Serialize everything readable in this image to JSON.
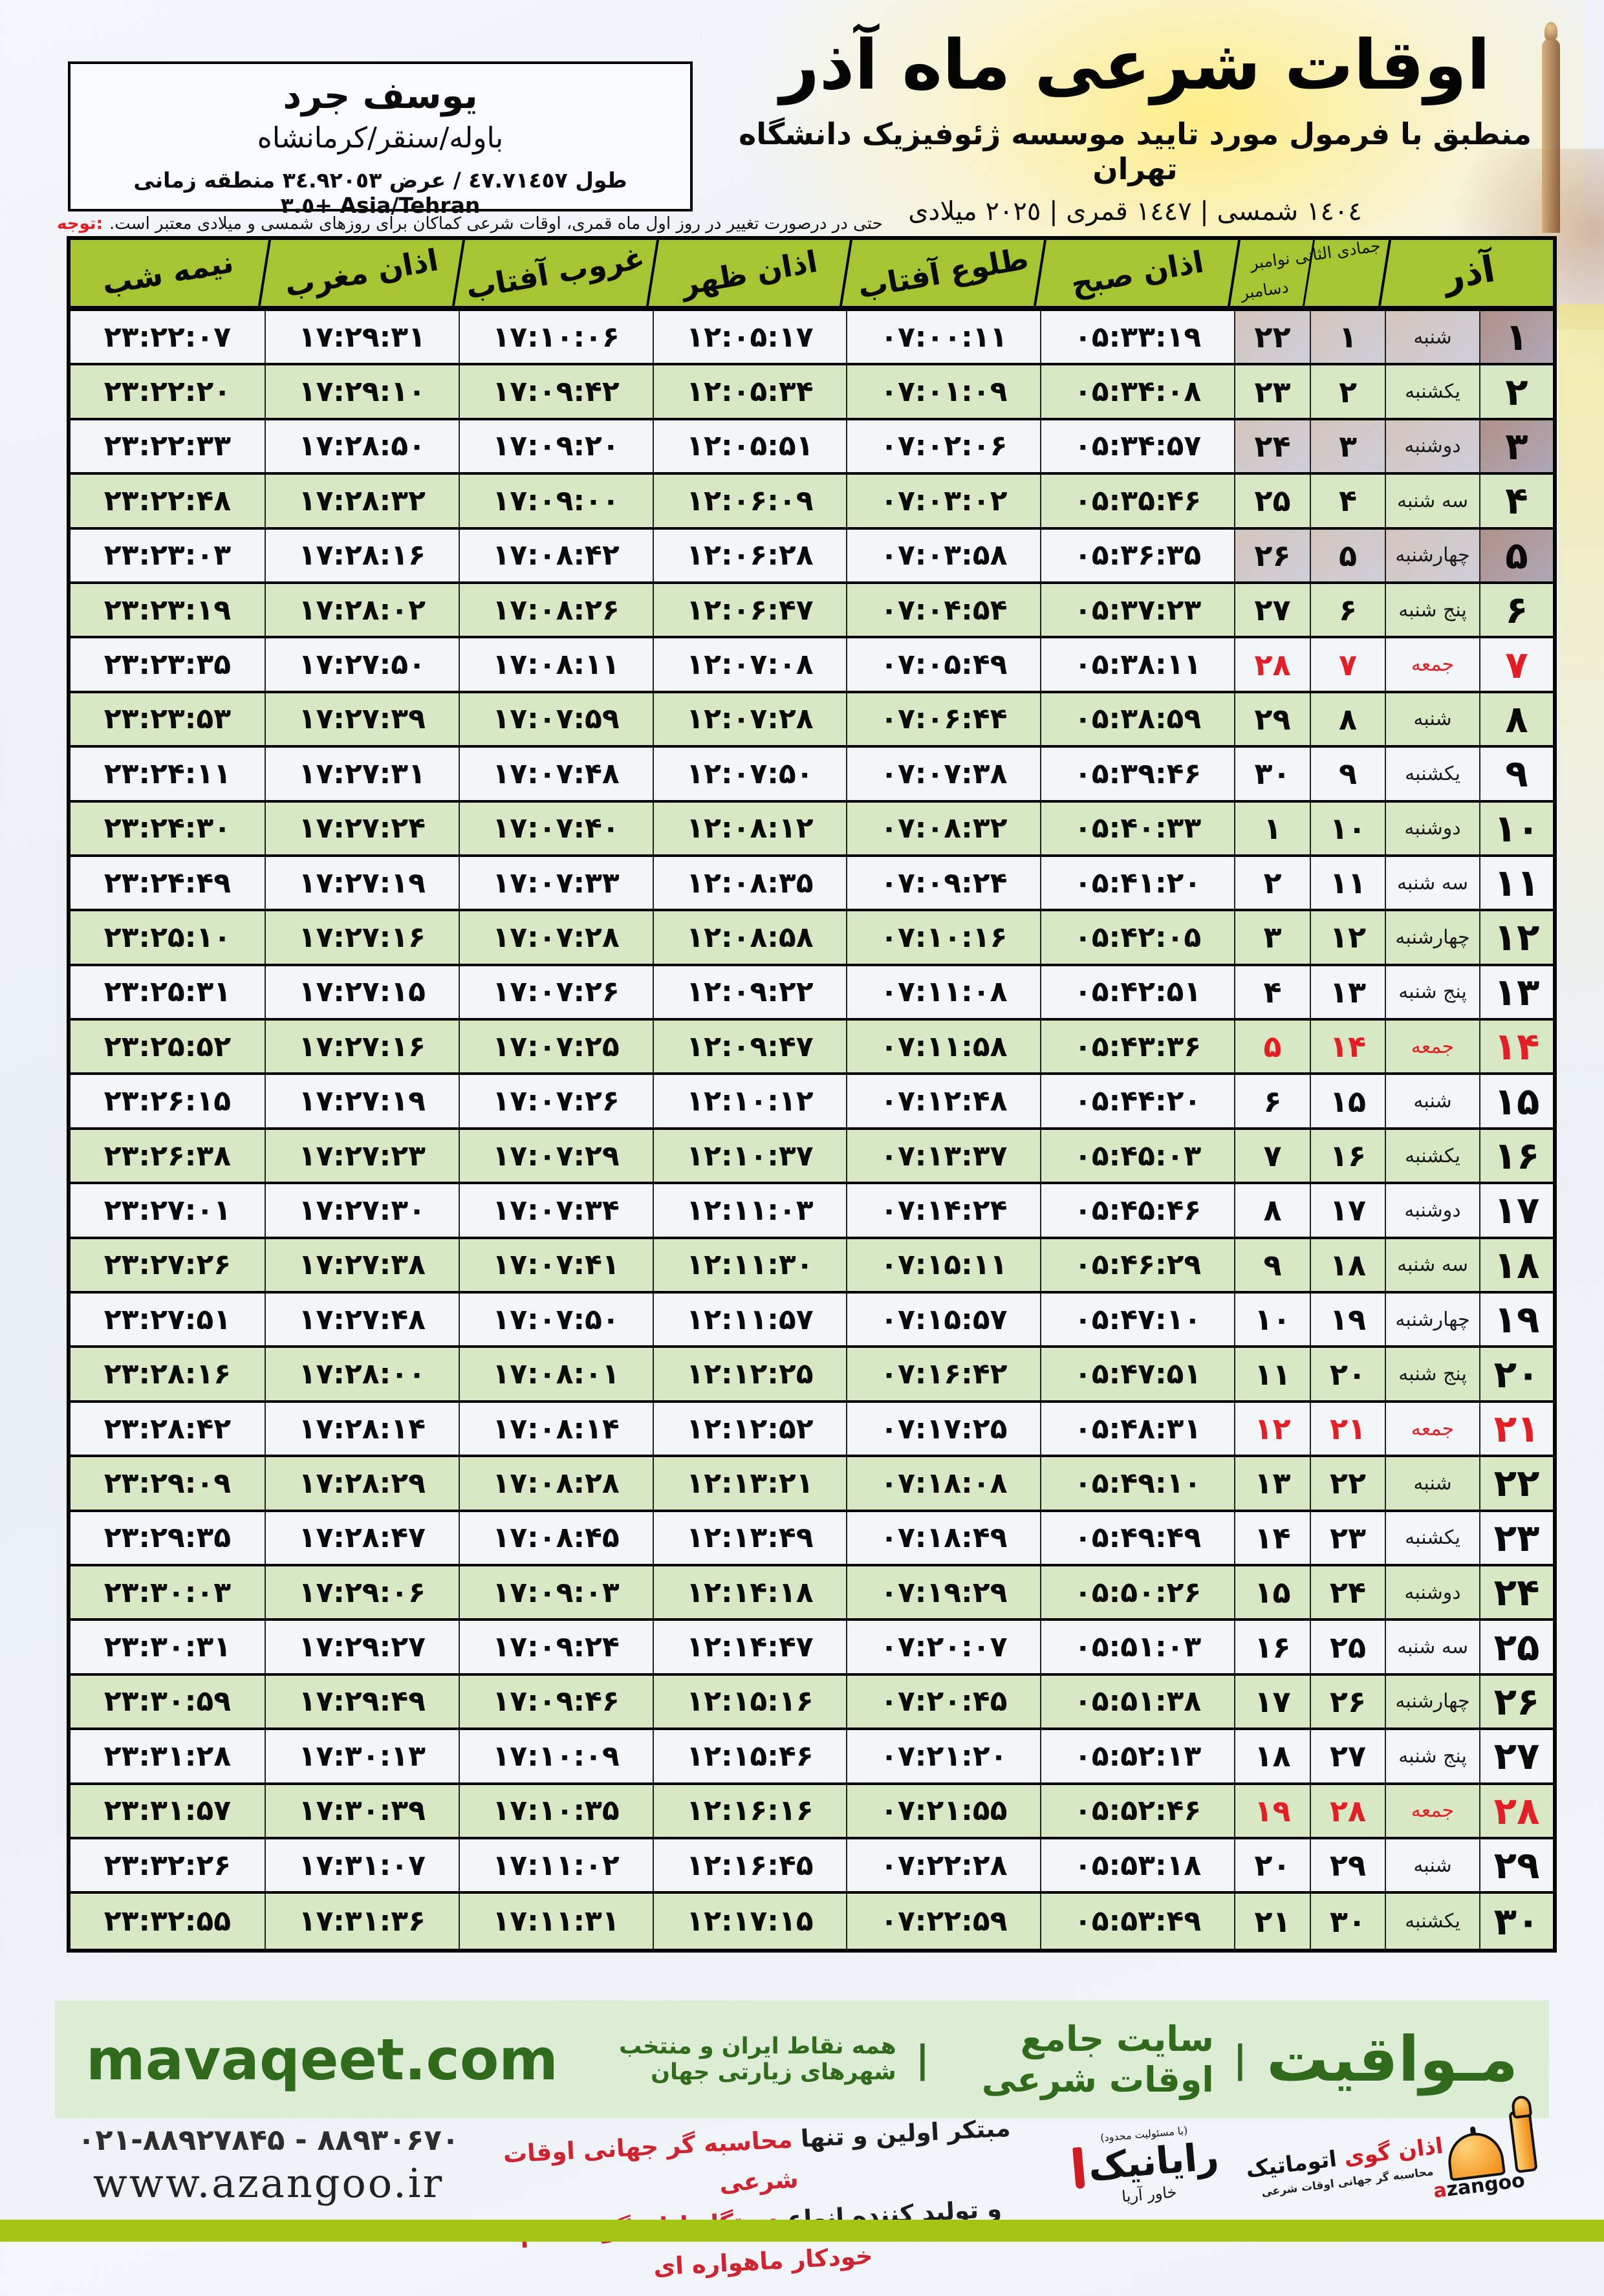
{
  "colors": {
    "header-green": "#a6c532",
    "row-green": "#d9e8c4",
    "row-white": "#f3f6f9",
    "red": "#e31e24",
    "dark-green": "#2f6b1b",
    "band-green": "#dcecd5",
    "bar-green": "#a6c414"
  },
  "header": {
    "location": {
      "name": "یوسف جرد",
      "region": "باوله/سنقر/کرمانشاه",
      "coords": "طول ٤٧.٧١٤٥٧ / عرض ٣٤.٩٢٠٥٣ منطقه زمانی Asia/Tehran +٣.٥"
    },
    "title": "اوقات شرعی ماه آذر",
    "subtitle": "منطبق با فرمول مورد تایید موسسه ژئوفیزیک دانشگاه تهران",
    "years": "١٤٠٤ شمسی | ١٤٤٧ قمری | ٢٠٢٥ میلادی",
    "notice_label": "توجه:",
    "notice_text": "حتی در درصورت تغییر در روز اول ماه قمری، اوقات شرعی کماکان برای روزهای شمسی و میلادی معتبر است."
  },
  "table": {
    "headers": {
      "azar": "آذر",
      "months_line1": "جمادی الثانی نوامبر",
      "months_line2": "دسامبر",
      "sobh": "اذان صبح",
      "tolu": "طلوع آفتاب",
      "zohr": "اذان ظهر",
      "ghorub": "غروب آفتاب",
      "maghreb": "اذان مغرب",
      "nimeshab": "نیمه شب"
    },
    "rows": [
      {
        "azar": "۱",
        "weekday": "شنبه",
        "lunar": "۱",
        "greg": "۲۲",
        "sobh": "۰۵:۳۳:۱۹",
        "tolu": "۰۷:۰۰:۱۱",
        "zohr": "۱۲:۰۵:۱۷",
        "ghorub": "۱۷:۱۰:۰۶",
        "maghreb": "۱۷:۲۹:۳۱",
        "nimeshab": "۲۳:۲۲:۰۷",
        "holiday": false
      },
      {
        "azar": "۲",
        "weekday": "یکشنبه",
        "lunar": "۲",
        "greg": "۲۳",
        "sobh": "۰۵:۳۴:۰۸",
        "tolu": "۰۷:۰۱:۰۹",
        "zohr": "۱۲:۰۵:۳۴",
        "ghorub": "۱۷:۰۹:۴۲",
        "maghreb": "۱۷:۲۹:۱۰",
        "nimeshab": "۲۳:۲۲:۲۰",
        "holiday": false
      },
      {
        "azar": "۳",
        "weekday": "دوشنبه",
        "lunar": "۳",
        "greg": "۲۴",
        "sobh": "۰۵:۳۴:۵۷",
        "tolu": "۰۷:۰۲:۰۶",
        "zohr": "۱۲:۰۵:۵۱",
        "ghorub": "۱۷:۰۹:۲۰",
        "maghreb": "۱۷:۲۸:۵۰",
        "nimeshab": "۲۳:۲۲:۳۳",
        "holiday": false
      },
      {
        "azar": "۴",
        "weekday": "سه شنبه",
        "lunar": "۴",
        "greg": "۲۵",
        "sobh": "۰۵:۳۵:۴۶",
        "tolu": "۰۷:۰۳:۰۲",
        "zohr": "۱۲:۰۶:۰۹",
        "ghorub": "۱۷:۰۹:۰۰",
        "maghreb": "۱۷:۲۸:۳۲",
        "nimeshab": "۲۳:۲۲:۴۸",
        "holiday": false
      },
      {
        "azar": "۵",
        "weekday": "چهارشنبه",
        "lunar": "۵",
        "greg": "۲۶",
        "sobh": "۰۵:۳۶:۳۵",
        "tolu": "۰۷:۰۳:۵۸",
        "zohr": "۱۲:۰۶:۲۸",
        "ghorub": "۱۷:۰۸:۴۲",
        "maghreb": "۱۷:۲۸:۱۶",
        "nimeshab": "۲۳:۲۳:۰۳",
        "holiday": false
      },
      {
        "azar": "۶",
        "weekday": "پنج شنبه",
        "lunar": "۶",
        "greg": "۲۷",
        "sobh": "۰۵:۳۷:۲۳",
        "tolu": "۰۷:۰۴:۵۴",
        "zohr": "۱۲:۰۶:۴۷",
        "ghorub": "۱۷:۰۸:۲۶",
        "maghreb": "۱۷:۲۸:۰۲",
        "nimeshab": "۲۳:۲۳:۱۹",
        "holiday": false
      },
      {
        "azar": "۷",
        "weekday": "جمعه",
        "lunar": "۷",
        "greg": "۲۸",
        "sobh": "۰۵:۳۸:۱۱",
        "tolu": "۰۷:۰۵:۴۹",
        "zohr": "۱۲:۰۷:۰۸",
        "ghorub": "۱۷:۰۸:۱۱",
        "maghreb": "۱۷:۲۷:۵۰",
        "nimeshab": "۲۳:۲۳:۳۵",
        "holiday": true
      },
      {
        "azar": "۸",
        "weekday": "شنبه",
        "lunar": "۸",
        "greg": "۲۹",
        "sobh": "۰۵:۳۸:۵۹",
        "tolu": "۰۷:۰۶:۴۴",
        "zohr": "۱۲:۰۷:۲۸",
        "ghorub": "۱۷:۰۷:۵۹",
        "maghreb": "۱۷:۲۷:۳۹",
        "nimeshab": "۲۳:۲۳:۵۳",
        "holiday": false
      },
      {
        "azar": "۹",
        "weekday": "یکشنبه",
        "lunar": "۹",
        "greg": "۳۰",
        "sobh": "۰۵:۳۹:۴۶",
        "tolu": "۰۷:۰۷:۳۸",
        "zohr": "۱۲:۰۷:۵۰",
        "ghorub": "۱۷:۰۷:۴۸",
        "maghreb": "۱۷:۲۷:۳۱",
        "nimeshab": "۲۳:۲۴:۱۱",
        "holiday": false
      },
      {
        "azar": "۱۰",
        "weekday": "دوشنبه",
        "lunar": "۱۰",
        "greg": "۱",
        "sobh": "۰۵:۴۰:۳۳",
        "tolu": "۰۷:۰۸:۳۲",
        "zohr": "۱۲:۰۸:۱۲",
        "ghorub": "۱۷:۰۷:۴۰",
        "maghreb": "۱۷:۲۷:۲۴",
        "nimeshab": "۲۳:۲۴:۳۰",
        "holiday": false
      },
      {
        "azar": "۱۱",
        "weekday": "سه شنبه",
        "lunar": "۱۱",
        "greg": "۲",
        "sobh": "۰۵:۴۱:۲۰",
        "tolu": "۰۷:۰۹:۲۴",
        "zohr": "۱۲:۰۸:۳۵",
        "ghorub": "۱۷:۰۷:۳۳",
        "maghreb": "۱۷:۲۷:۱۹",
        "nimeshab": "۲۳:۲۴:۴۹",
        "holiday": false
      },
      {
        "azar": "۱۲",
        "weekday": "چهارشنبه",
        "lunar": "۱۲",
        "greg": "۳",
        "sobh": "۰۵:۴۲:۰۵",
        "tolu": "۰۷:۱۰:۱۶",
        "zohr": "۱۲:۰۸:۵۸",
        "ghorub": "۱۷:۰۷:۲۸",
        "maghreb": "۱۷:۲۷:۱۶",
        "nimeshab": "۲۳:۲۵:۱۰",
        "holiday": false
      },
      {
        "azar": "۱۳",
        "weekday": "پنج شنبه",
        "lunar": "۱۳",
        "greg": "۴",
        "sobh": "۰۵:۴۲:۵۱",
        "tolu": "۰۷:۱۱:۰۸",
        "zohr": "۱۲:۰۹:۲۲",
        "ghorub": "۱۷:۰۷:۲۶",
        "maghreb": "۱۷:۲۷:۱۵",
        "nimeshab": "۲۳:۲۵:۳۱",
        "holiday": false
      },
      {
        "azar": "۱۴",
        "weekday": "جمعه",
        "lunar": "۱۴",
        "greg": "۵",
        "sobh": "۰۵:۴۳:۳۶",
        "tolu": "۰۷:۱۱:۵۸",
        "zohr": "۱۲:۰۹:۴۷",
        "ghorub": "۱۷:۰۷:۲۵",
        "maghreb": "۱۷:۲۷:۱۶",
        "nimeshab": "۲۳:۲۵:۵۲",
        "holiday": true
      },
      {
        "azar": "۱۵",
        "weekday": "شنبه",
        "lunar": "۱۵",
        "greg": "۶",
        "sobh": "۰۵:۴۴:۲۰",
        "tolu": "۰۷:۱۲:۴۸",
        "zohr": "۱۲:۱۰:۱۲",
        "ghorub": "۱۷:۰۷:۲۶",
        "maghreb": "۱۷:۲۷:۱۹",
        "nimeshab": "۲۳:۲۶:۱۵",
        "holiday": false
      },
      {
        "azar": "۱۶",
        "weekday": "یکشنبه",
        "lunar": "۱۶",
        "greg": "۷",
        "sobh": "۰۵:۴۵:۰۳",
        "tolu": "۰۷:۱۳:۳۷",
        "zohr": "۱۲:۱۰:۳۷",
        "ghorub": "۱۷:۰۷:۲۹",
        "maghreb": "۱۷:۲۷:۲۳",
        "nimeshab": "۲۳:۲۶:۳۸",
        "holiday": false
      },
      {
        "azar": "۱۷",
        "weekday": "دوشنبه",
        "lunar": "۱۷",
        "greg": "۸",
        "sobh": "۰۵:۴۵:۴۶",
        "tolu": "۰۷:۱۴:۲۴",
        "zohr": "۱۲:۱۱:۰۳",
        "ghorub": "۱۷:۰۷:۳۴",
        "maghreb": "۱۷:۲۷:۳۰",
        "nimeshab": "۲۳:۲۷:۰۱",
        "holiday": false
      },
      {
        "azar": "۱۸",
        "weekday": "سه شنبه",
        "lunar": "۱۸",
        "greg": "۹",
        "sobh": "۰۵:۴۶:۲۹",
        "tolu": "۰۷:۱۵:۱۱",
        "zohr": "۱۲:۱۱:۳۰",
        "ghorub": "۱۷:۰۷:۴۱",
        "maghreb": "۱۷:۲۷:۳۸",
        "nimeshab": "۲۳:۲۷:۲۶",
        "holiday": false
      },
      {
        "azar": "۱۹",
        "weekday": "چهارشنبه",
        "lunar": "۱۹",
        "greg": "۱۰",
        "sobh": "۰۵:۴۷:۱۰",
        "tolu": "۰۷:۱۵:۵۷",
        "zohr": "۱۲:۱۱:۵۷",
        "ghorub": "۱۷:۰۷:۵۰",
        "maghreb": "۱۷:۲۷:۴۸",
        "nimeshab": "۲۳:۲۷:۵۱",
        "holiday": false
      },
      {
        "azar": "۲۰",
        "weekday": "پنج شنبه",
        "lunar": "۲۰",
        "greg": "۱۱",
        "sobh": "۰۵:۴۷:۵۱",
        "tolu": "۰۷:۱۶:۴۲",
        "zohr": "۱۲:۱۲:۲۵",
        "ghorub": "۱۷:۰۸:۰۱",
        "maghreb": "۱۷:۲۸:۰۰",
        "nimeshab": "۲۳:۲۸:۱۶",
        "holiday": false
      },
      {
        "azar": "۲۱",
        "weekday": "جمعه",
        "lunar": "۲۱",
        "greg": "۱۲",
        "sobh": "۰۵:۴۸:۳۱",
        "tolu": "۰۷:۱۷:۲۵",
        "zohr": "۱۲:۱۲:۵۲",
        "ghorub": "۱۷:۰۸:۱۴",
        "maghreb": "۱۷:۲۸:۱۴",
        "nimeshab": "۲۳:۲۸:۴۲",
        "holiday": true
      },
      {
        "azar": "۲۲",
        "weekday": "شنبه",
        "lunar": "۲۲",
        "greg": "۱۳",
        "sobh": "۰۵:۴۹:۱۰",
        "tolu": "۰۷:۱۸:۰۸",
        "zohr": "۱۲:۱۳:۲۱",
        "ghorub": "۱۷:۰۸:۲۸",
        "maghreb": "۱۷:۲۸:۲۹",
        "nimeshab": "۲۳:۲۹:۰۹",
        "holiday": false
      },
      {
        "azar": "۲۳",
        "weekday": "یکشنبه",
        "lunar": "۲۳",
        "greg": "۱۴",
        "sobh": "۰۵:۴۹:۴۹",
        "tolu": "۰۷:۱۸:۴۹",
        "zohr": "۱۲:۱۳:۴۹",
        "ghorub": "۱۷:۰۸:۴۵",
        "maghreb": "۱۷:۲۸:۴۷",
        "nimeshab": "۲۳:۲۹:۳۵",
        "holiday": false
      },
      {
        "azar": "۲۴",
        "weekday": "دوشنبه",
        "lunar": "۲۴",
        "greg": "۱۵",
        "sobh": "۰۵:۵۰:۲۶",
        "tolu": "۰۷:۱۹:۲۹",
        "zohr": "۱۲:۱۴:۱۸",
        "ghorub": "۱۷:۰۹:۰۳",
        "maghreb": "۱۷:۲۹:۰۶",
        "nimeshab": "۲۳:۳۰:۰۳",
        "holiday": false
      },
      {
        "azar": "۲۵",
        "weekday": "سه شنبه",
        "lunar": "۲۵",
        "greg": "۱۶",
        "sobh": "۰۵:۵۱:۰۳",
        "tolu": "۰۷:۲۰:۰۷",
        "zohr": "۱۲:۱۴:۴۷",
        "ghorub": "۱۷:۰۹:۲۴",
        "maghreb": "۱۷:۲۹:۲۷",
        "nimeshab": "۲۳:۳۰:۳۱",
        "holiday": false
      },
      {
        "azar": "۲۶",
        "weekday": "چهارشنبه",
        "lunar": "۲۶",
        "greg": "۱۷",
        "sobh": "۰۵:۵۱:۳۸",
        "tolu": "۰۷:۲۰:۴۵",
        "zohr": "۱۲:۱۵:۱۶",
        "ghorub": "۱۷:۰۹:۴۶",
        "maghreb": "۱۷:۲۹:۴۹",
        "nimeshab": "۲۳:۳۰:۵۹",
        "holiday": false
      },
      {
        "azar": "۲۷",
        "weekday": "پنج شنبه",
        "lunar": "۲۷",
        "greg": "۱۸",
        "sobh": "۰۵:۵۲:۱۳",
        "tolu": "۰۷:۲۱:۲۰",
        "zohr": "۱۲:۱۵:۴۶",
        "ghorub": "۱۷:۱۰:۰۹",
        "maghreb": "۱۷:۳۰:۱۳",
        "nimeshab": "۲۳:۳۱:۲۸",
        "holiday": false
      },
      {
        "azar": "۲۸",
        "weekday": "جمعه",
        "lunar": "۲۸",
        "greg": "۱۹",
        "sobh": "۰۵:۵۲:۴۶",
        "tolu": "۰۷:۲۱:۵۵",
        "zohr": "۱۲:۱۶:۱۶",
        "ghorub": "۱۷:۱۰:۳۵",
        "maghreb": "۱۷:۳۰:۳۹",
        "nimeshab": "۲۳:۳۱:۵۷",
        "holiday": true
      },
      {
        "azar": "۲۹",
        "weekday": "شنبه",
        "lunar": "۲۹",
        "greg": "۲۰",
        "sobh": "۰۵:۵۳:۱۸",
        "tolu": "۰۷:۲۲:۲۸",
        "zohr": "۱۲:۱۶:۴۵",
        "ghorub": "۱۷:۱۱:۰۲",
        "maghreb": "۱۷:۳۱:۰۷",
        "nimeshab": "۲۳:۳۲:۲۶",
        "holiday": false
      },
      {
        "azar": "۳۰",
        "weekday": "یکشنبه",
        "lunar": "۳۰",
        "greg": "۲۱",
        "sobh": "۰۵:۵۳:۴۹",
        "tolu": "۰۷:۲۲:۵۹",
        "zohr": "۱۲:۱۷:۱۵",
        "ghorub": "۱۷:۱۱:۳۱",
        "maghreb": "۱۷:۳۱:۳۶",
        "nimeshab": "۲۳:۳۲:۵۵",
        "holiday": false
      }
    ]
  },
  "footer": {
    "brand": "مـواقیت",
    "separator": "|",
    "site_label": "سایت جامع اوقات شرعی",
    "coverage": "همه نقاط ایران و منتخب شهرهای زیارتی جهان",
    "url": "mavaqeet.com",
    "phone": "۰۲۱-۸۸۹۲۷۸۴۵ - ۸۸۹۳۰۶۷۰",
    "site": "www.azangoo.ir",
    "slogan_line1_black": "مبتکر اولین و تنها ",
    "slogan_line1_red": "محاسبه گر جهانی اوقات شرعی",
    "slogan_line2_black": "و تولید کننده انواع ",
    "slogan_line2_red": "دستگاه اذان گوی تمام خودکار ماهواره ای",
    "rayanik_note": "(با مسئولیت محدود)",
    "rayanik_name": "رایانیک",
    "rayanik_sub": "خاور آریا",
    "azangoo_name_red": "اذان گوی ",
    "azangoo_name_black": "اتوماتیک",
    "azangoo_tagline": "محاسبه گر جهانی اوقات شرعی",
    "azangoo_latin_red": "a",
    "azangoo_latin_black": "zangoo"
  }
}
